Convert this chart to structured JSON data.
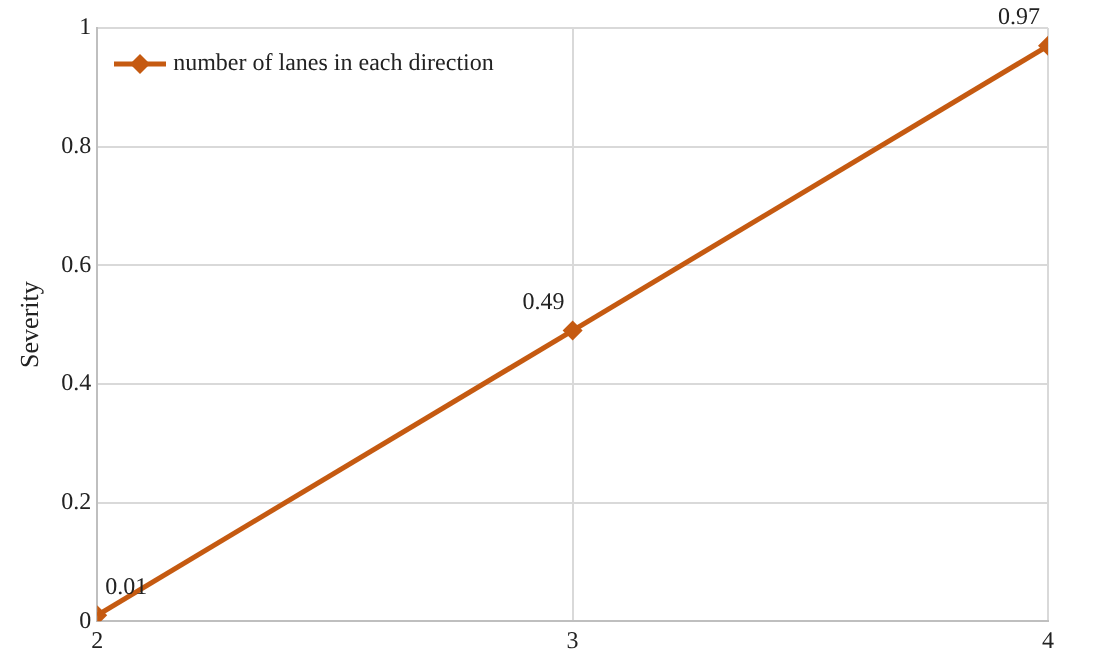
{
  "chart_data": {
    "type": "line",
    "ylabel": "Severity",
    "x": [
      2,
      3,
      4
    ],
    "series": [
      {
        "name": "number of lanes in each direction",
        "color": "#c55a11",
        "values": [
          0.01,
          0.49,
          0.97
        ]
      }
    ],
    "xlim": [
      2,
      4
    ],
    "xticks": [
      2,
      3,
      4
    ],
    "ylim": [
      0,
      1
    ],
    "yticks": [
      0,
      0.2,
      0.4,
      0.6,
      0.8,
      1
    ],
    "grid": true,
    "legend": "top left",
    "marker": "diamond",
    "line_style": "solid",
    "data_labels": true
  }
}
